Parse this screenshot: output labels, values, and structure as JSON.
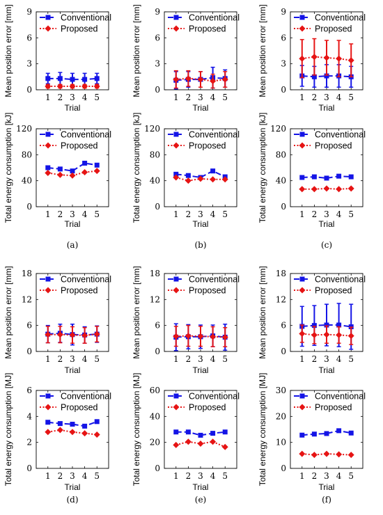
{
  "legend": {
    "conventional": "Conventional",
    "proposed": "Proposed"
  },
  "colors": {
    "conventional": "#1414e6",
    "proposed": "#e61414"
  },
  "x_axis_label": "Trial",
  "panel_labels": [
    "(a)",
    "(b)",
    "(c)",
    "(d)",
    "(e)",
    "(f)"
  ],
  "chart_data": [
    {
      "type": "line",
      "xlabel": "Trial",
      "ylabel": "Mean position error [mm]",
      "x": [
        1,
        2,
        3,
        4,
        5
      ],
      "ylim": [
        0,
        9
      ],
      "yticks": [
        0,
        3,
        6,
        9
      ],
      "series": [
        {
          "name": "Conventional",
          "values": [
            1.3,
            1.3,
            1.2,
            1.2,
            1.3
          ],
          "err": [
            0.6,
            0.7,
            0.7,
            0.7,
            0.6
          ]
        },
        {
          "name": "Proposed",
          "values": [
            0.4,
            0.4,
            0.4,
            0.4,
            0.4
          ],
          "err": [
            0.2,
            0.2,
            0.2,
            0.2,
            0.2
          ]
        }
      ]
    },
    {
      "type": "line",
      "xlabel": "Trial",
      "ylabel": "Mean position error [mm]",
      "x": [
        1,
        2,
        3,
        4,
        5
      ],
      "ylim": [
        0,
        9
      ],
      "yticks": [
        0,
        3,
        6,
        9
      ],
      "series": [
        {
          "name": "Conventional",
          "values": [
            1.1,
            1.2,
            1.2,
            1.4,
            1.3
          ],
          "err": [
            1.0,
            0.9,
            0.9,
            1.2,
            1.0
          ]
        },
        {
          "name": "Proposed",
          "values": [
            1.2,
            1.3,
            1.2,
            1.0,
            1.2
          ],
          "err": [
            1.0,
            0.9,
            0.9,
            0.8,
            0.9
          ]
        }
      ]
    },
    {
      "type": "line",
      "xlabel": "Trial",
      "ylabel": "Mean position error [mm]",
      "x": [
        1,
        2,
        3,
        4,
        5
      ],
      "ylim": [
        0,
        9
      ],
      "yticks": [
        0,
        3,
        6,
        9
      ],
      "series": [
        {
          "name": "Conventional",
          "values": [
            1.6,
            1.5,
            1.6,
            1.6,
            1.5
          ],
          "err": [
            1.2,
            1.2,
            1.3,
            1.3,
            1.2
          ]
        },
        {
          "name": "Proposed",
          "values": [
            3.6,
            3.8,
            3.7,
            3.6,
            3.4
          ],
          "err": [
            2.2,
            2.1,
            2.0,
            2.1,
            1.9
          ]
        }
      ]
    },
    {
      "type": "line",
      "xlabel": "Trial",
      "ylabel": "Total energy consumption [kJ]",
      "x": [
        1,
        2,
        3,
        4,
        5
      ],
      "ylim": [
        0,
        120
      ],
      "yticks": [
        0,
        40,
        80,
        120
      ],
      "series": [
        {
          "name": "Conventional",
          "values": [
            60,
            58,
            55,
            67,
            64
          ]
        },
        {
          "name": "Proposed",
          "values": [
            52,
            49,
            48,
            53,
            55
          ]
        }
      ]
    },
    {
      "type": "line",
      "xlabel": "Trial",
      "ylabel": "Total energy consumption [kJ]",
      "x": [
        1,
        2,
        3,
        4,
        5
      ],
      "ylim": [
        0,
        120
      ],
      "yticks": [
        0,
        40,
        80,
        120
      ],
      "series": [
        {
          "name": "Conventional",
          "values": [
            50,
            48,
            45,
            55,
            46
          ]
        },
        {
          "name": "Proposed",
          "values": [
            45,
            40,
            43,
            42,
            42
          ]
        }
      ]
    },
    {
      "type": "line",
      "xlabel": "Trial",
      "ylabel": "Total energy consumption [kJ]",
      "x": [
        1,
        2,
        3,
        4,
        5
      ],
      "ylim": [
        0,
        120
      ],
      "yticks": [
        0,
        40,
        80,
        120
      ],
      "series": [
        {
          "name": "Conventional",
          "values": [
            45,
            46,
            44,
            47,
            46
          ]
        },
        {
          "name": "Proposed",
          "values": [
            27,
            27,
            28,
            27,
            28
          ]
        }
      ]
    },
    {
      "type": "line",
      "xlabel": "Trial",
      "ylabel": "Mean position error [mm]",
      "x": [
        1,
        2,
        3,
        4,
        5
      ],
      "ylim": [
        0,
        18
      ],
      "yticks": [
        0,
        6,
        12,
        18
      ],
      "series": [
        {
          "name": "Conventional",
          "values": [
            4.0,
            4.2,
            3.9,
            3.8,
            4.0
          ],
          "err": [
            2.0,
            2.1,
            2.4,
            1.9,
            1.9
          ]
        },
        {
          "name": "Proposed",
          "values": [
            3.9,
            3.9,
            3.8,
            3.7,
            4.0
          ],
          "err": [
            1.9,
            1.9,
            1.9,
            1.8,
            1.8
          ]
        }
      ]
    },
    {
      "type": "line",
      "xlabel": "Trial",
      "ylabel": "Mean position error [mm]",
      "x": [
        1,
        2,
        3,
        4,
        5
      ],
      "ylim": [
        0,
        18
      ],
      "yticks": [
        0,
        6,
        12,
        18
      ],
      "series": [
        {
          "name": "Conventional",
          "values": [
            3.3,
            3.4,
            3.4,
            3.6,
            3.3
          ],
          "err": [
            3.1,
            2.8,
            2.7,
            2.5,
            3.0
          ]
        },
        {
          "name": "Proposed",
          "values": [
            3.5,
            3.6,
            3.5,
            3.4,
            3.3
          ],
          "err": [
            2.3,
            2.4,
            2.3,
            2.3,
            2.2
          ]
        }
      ]
    },
    {
      "type": "line",
      "xlabel": "Trial",
      "ylabel": "Mean position error [mm]",
      "x": [
        1,
        2,
        3,
        4,
        5
      ],
      "ylim": [
        0,
        18
      ],
      "yticks": [
        0,
        6,
        12,
        18
      ],
      "series": [
        {
          "name": "Conventional",
          "values": [
            5.8,
            6.0,
            6.1,
            6.1,
            5.7
          ],
          "err": [
            4.6,
            4.6,
            4.8,
            5.0,
            5.2
          ]
        },
        {
          "name": "Proposed",
          "values": [
            4.1,
            3.8,
            3.9,
            3.8,
            3.6
          ],
          "err": [
            2.0,
            2.0,
            2.0,
            1.9,
            2.0
          ]
        }
      ]
    },
    {
      "type": "line",
      "xlabel": "Trial",
      "ylabel": "Total energy consumption [MJ]",
      "x": [
        1,
        2,
        3,
        4,
        5
      ],
      "ylim": [
        0,
        6
      ],
      "yticks": [
        0,
        2,
        4,
        6
      ],
      "series": [
        {
          "name": "Conventional",
          "values": [
            3.55,
            3.45,
            3.4,
            3.25,
            3.6
          ]
        },
        {
          "name": "Proposed",
          "values": [
            2.8,
            2.95,
            2.8,
            2.7,
            2.6
          ]
        }
      ]
    },
    {
      "type": "line",
      "xlabel": "Trial",
      "ylabel": "Total energy consumption [MJ]",
      "x": [
        1,
        2,
        3,
        4,
        5
      ],
      "ylim": [
        0,
        60
      ],
      "yticks": [
        0,
        20,
        40,
        60
      ],
      "series": [
        {
          "name": "Conventional",
          "values": [
            28,
            28,
            25.5,
            27,
            28
          ]
        },
        {
          "name": "Proposed",
          "values": [
            18,
            20.5,
            19,
            20.5,
            16.5
          ]
        }
      ]
    },
    {
      "type": "line",
      "xlabel": "Trial",
      "ylabel": "Total energy consumption [MJ]",
      "x": [
        1,
        2,
        3,
        4,
        5
      ],
      "ylim": [
        0,
        30
      ],
      "yticks": [
        0,
        10,
        20,
        30
      ],
      "series": [
        {
          "name": "Conventional",
          "values": [
            12.8,
            13.2,
            13.4,
            14.5,
            13.6
          ]
        },
        {
          "name": "Proposed",
          "values": [
            5.6,
            5.2,
            5.6,
            5.4,
            5.2
          ]
        }
      ]
    }
  ]
}
